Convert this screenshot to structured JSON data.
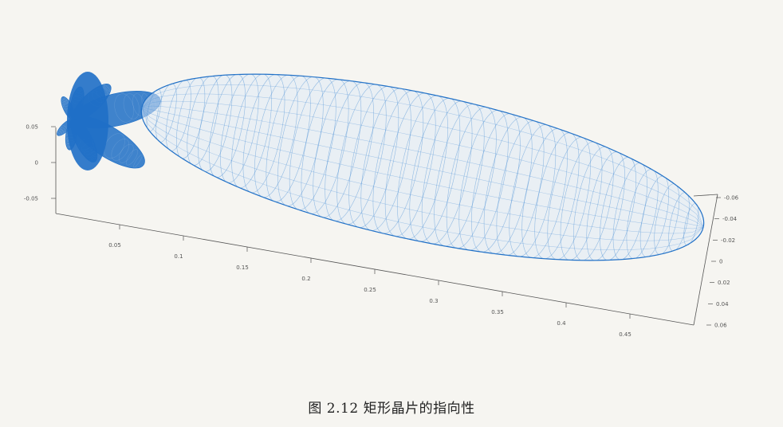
{
  "caption": "图 2.12 矩形晶片的指向性",
  "chart_data": {
    "type": "surface-3d",
    "x_axis": {
      "ticks": [
        "0.05",
        "0.1",
        "0.15",
        "0.2",
        "0.25",
        "0.3",
        "0.35",
        "0.4",
        "0.45"
      ],
      "range": [
        0,
        0.5
      ]
    },
    "z_axis": {
      "ticks": [
        "0.05",
        "0",
        "-0.05"
      ],
      "range": [
        -0.06,
        0.06
      ]
    },
    "y_axis": {
      "ticks": [
        "-0.06",
        "-0.04",
        "-0.02",
        "0",
        "0.02",
        "0.04",
        "0.06"
      ],
      "range": [
        -0.06,
        0.06
      ]
    },
    "main_lobe": {
      "length": 0.5,
      "half_width": 0.062
    },
    "side_lobes": [
      {
        "angle_deg": 12,
        "length": 0.16
      },
      {
        "angle_deg": -12,
        "length": 0.15
      },
      {
        "angle_deg": 28,
        "length": 0.09
      },
      {
        "angle_deg": -28,
        "length": 0.085
      },
      {
        "angle_deg": 46,
        "length": 0.06
      },
      {
        "angle_deg": -46,
        "length": 0.055
      },
      {
        "angle_deg": 66,
        "length": 0.045
      },
      {
        "angle_deg": -66,
        "length": 0.04
      }
    ],
    "colors": {
      "mesh": "#1f6fc6",
      "mesh_light": "#4a8fd6",
      "axis": "#555555"
    },
    "grid": false
  }
}
